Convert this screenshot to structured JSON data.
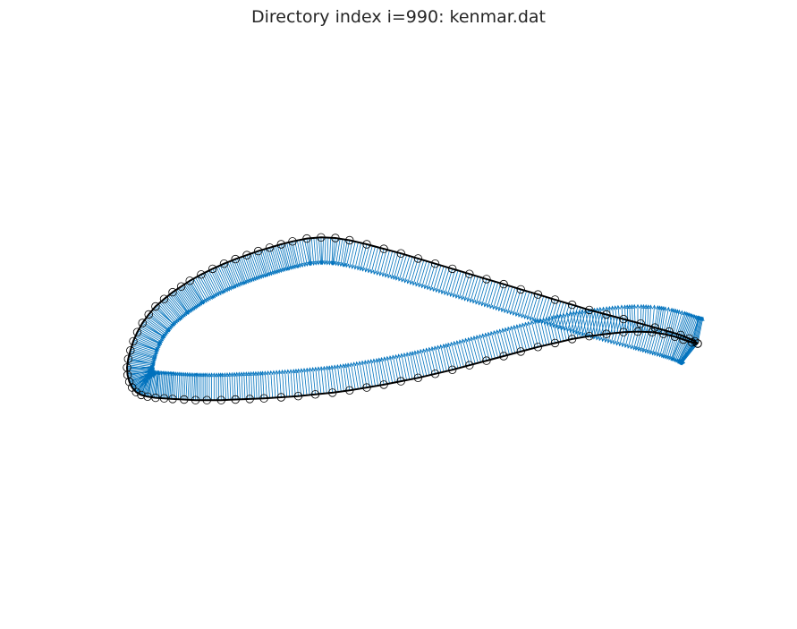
{
  "chart_data": {
    "type": "scatter",
    "title": "Directory index i=990: kenmar.dat",
    "xlabel": "",
    "ylabel": "",
    "axes_visible": false,
    "grid": false,
    "aspect": "equal",
    "xlim": [
      -0.03,
      1.03
    ],
    "colors": {
      "points_edge": "#000000",
      "outline": "#000000",
      "normals": "#0072bd"
    },
    "series": [
      {
        "name": "",
        "marker": "circle-open",
        "x": [
          1.0,
          0.995,
          0.985,
          0.97,
          0.95,
          0.925,
          0.9,
          0.87,
          0.84,
          0.81,
          0.78,
          0.75,
          0.72,
          0.69,
          0.66,
          0.63,
          0.6,
          0.57,
          0.54,
          0.51,
          0.48,
          0.45,
          0.42,
          0.39,
          0.365,
          0.34,
          0.315,
          0.29,
          0.27,
          0.25,
          0.23,
          0.21,
          0.19,
          0.17,
          0.15,
          0.13,
          0.11,
          0.095,
          0.08,
          0.065,
          0.05,
          0.038,
          0.027,
          0.018,
          0.011,
          0.006,
          0.002,
          0.0,
          0.001,
          0.004,
          0.009,
          0.016,
          0.025,
          0.036,
          0.05,
          0.065,
          0.08,
          0.1,
          0.12,
          0.14,
          0.165,
          0.19,
          0.215,
          0.24,
          0.27,
          0.3,
          0.33,
          0.36,
          0.39,
          0.42,
          0.45,
          0.48,
          0.51,
          0.54,
          0.57,
          0.6,
          0.63,
          0.66,
          0.69,
          0.72,
          0.75,
          0.78,
          0.81,
          0.84,
          0.87,
          0.895,
          0.92,
          0.94,
          0.96,
          0.975,
          0.99,
          1.0
        ],
        "y": [
          0.0,
          0.004,
          0.009,
          0.015,
          0.021,
          0.028,
          0.035,
          0.043,
          0.051,
          0.059,
          0.068,
          0.077,
          0.086,
          0.095,
          0.104,
          0.113,
          0.122,
          0.131,
          0.14,
          0.149,
          0.158,
          0.166,
          0.174,
          0.181,
          0.185,
          0.186,
          0.184,
          0.179,
          0.174,
          0.168,
          0.162,
          0.155,
          0.148,
          0.14,
          0.131,
          0.121,
          0.11,
          0.1,
          0.09,
          0.078,
          0.065,
          0.051,
          0.036,
          0.02,
          0.004,
          -0.012,
          -0.027,
          -0.042,
          -0.055,
          -0.067,
          -0.077,
          -0.085,
          -0.09,
          -0.093,
          -0.095,
          -0.096,
          -0.097,
          -0.098,
          -0.099,
          -0.099,
          -0.099,
          -0.098,
          -0.097,
          -0.096,
          -0.094,
          -0.092,
          -0.089,
          -0.086,
          -0.082,
          -0.077,
          -0.072,
          -0.066,
          -0.06,
          -0.053,
          -0.046,
          -0.038,
          -0.03,
          -0.022,
          -0.014,
          -0.006,
          0.001,
          0.008,
          0.013,
          0.017,
          0.02,
          0.021,
          0.02,
          0.017,
          0.012,
          0.007,
          0.002,
          0.0
        ]
      }
    ]
  }
}
